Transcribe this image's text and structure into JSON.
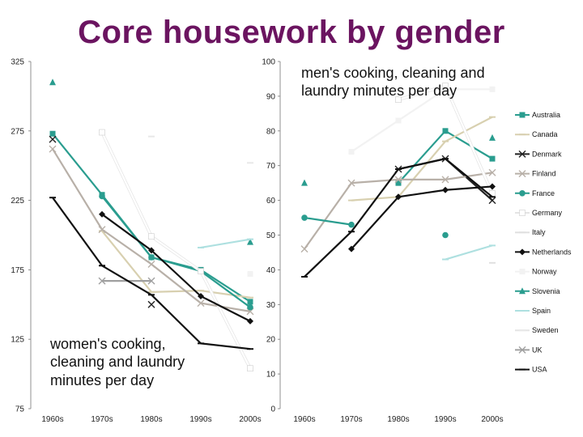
{
  "title": "Core housework by gender",
  "chart_data": [
    {
      "type": "line",
      "panel": "women",
      "label": "women's cooking, cleaning and laundry minutes per day",
      "categories": [
        "1960s",
        "1970s",
        "1980s",
        "1990s",
        "2000s"
      ],
      "ylim": [
        75,
        325
      ],
      "yticks": [
        75,
        125,
        175,
        225,
        275,
        325
      ],
      "series": [
        {
          "name": "Australia",
          "values": [
            273,
            229,
            184,
            175,
            152
          ]
        },
        {
          "name": "Canada",
          "values": [
            null,
            203,
            159,
            160,
            155
          ]
        },
        {
          "name": "Denmark",
          "values": [
            269,
            null,
            150,
            null,
            null
          ]
        },
        {
          "name": "Finland",
          "values": [
            262,
            204,
            179,
            151,
            145
          ]
        },
        {
          "name": "France",
          "values": [
            null,
            228,
            184,
            174,
            148
          ]
        },
        {
          "name": "Germany",
          "values": [
            null,
            274,
            199,
            174,
            104
          ]
        },
        {
          "name": "Italy",
          "values": [
            null,
            null,
            null,
            null,
            null
          ]
        },
        {
          "name": "Netherlands",
          "values": [
            null,
            215,
            189,
            156,
            138
          ]
        },
        {
          "name": "Norway",
          "values": [
            null,
            null,
            null,
            null,
            172
          ]
        },
        {
          "name": "Slovenia",
          "values": [
            310,
            null,
            null,
            null,
            195
          ]
        },
        {
          "name": "Spain",
          "values": [
            null,
            null,
            null,
            191,
            197
          ]
        },
        {
          "name": "Sweden",
          "values": [
            null,
            null,
            271,
            null,
            252
          ]
        },
        {
          "name": "UK",
          "values": [
            null,
            167,
            167,
            null,
            null
          ]
        },
        {
          "name": "USA",
          "values": [
            227,
            178,
            157,
            122,
            118
          ]
        }
      ]
    },
    {
      "type": "line",
      "panel": "men",
      "label": "men's cooking, cleaning and laundry minutes per day",
      "categories": [
        "1960s",
        "1970s",
        "1980s",
        "1990s",
        "2000s"
      ],
      "ylim": [
        0,
        100
      ],
      "yticks": [
        0,
        10,
        20,
        30,
        40,
        50,
        60,
        70,
        80,
        90,
        100
      ],
      "series": [
        {
          "name": "Australia",
          "values": [
            null,
            null,
            65,
            80,
            72
          ]
        },
        {
          "name": "Canada",
          "values": [
            null,
            60,
            61,
            77,
            84
          ]
        },
        {
          "name": "Denmark",
          "values": [
            null,
            null,
            69,
            72,
            60
          ]
        },
        {
          "name": "Finland",
          "values": [
            46,
            65,
            66,
            66,
            68
          ]
        },
        {
          "name": "France",
          "values": [
            55,
            53,
            null,
            50,
            null
          ]
        },
        {
          "name": "Germany",
          "values": [
            null,
            null,
            89,
            93,
            62
          ]
        },
        {
          "name": "Italy",
          "values": [
            null,
            null,
            null,
            null,
            42
          ]
        },
        {
          "name": "Netherlands",
          "values": [
            null,
            46,
            61,
            63,
            64
          ]
        },
        {
          "name": "Norway",
          "values": [
            null,
            74,
            83,
            92,
            92
          ]
        },
        {
          "name": "Slovenia",
          "values": [
            65,
            null,
            null,
            null,
            78
          ]
        },
        {
          "name": "Spain",
          "values": [
            null,
            null,
            null,
            43,
            47
          ]
        },
        {
          "name": "Sweden",
          "values": [
            null,
            null,
            null,
            null,
            null
          ]
        },
        {
          "name": "UK",
          "values": [
            null,
            null,
            null,
            null,
            null
          ]
        },
        {
          "name": "USA",
          "values": [
            38,
            51,
            69,
            72,
            61
          ]
        }
      ]
    }
  ],
  "legend": [
    {
      "name": "Australia",
      "color": "#2a9d8f",
      "marker": "square"
    },
    {
      "name": "Canada",
      "color": "#d8d0b0",
      "marker": "dash"
    },
    {
      "name": "Denmark",
      "color": "#222222",
      "marker": "x"
    },
    {
      "name": "Finland",
      "color": "#b8b0a8",
      "marker": "x"
    },
    {
      "name": "France",
      "color": "#2a9d8f",
      "marker": "circle"
    },
    {
      "name": "Germany",
      "color": "#ffffff",
      "marker": "square"
    },
    {
      "name": "Italy",
      "color": "#e0e0e0",
      "marker": "dash"
    },
    {
      "name": "Netherlands",
      "color": "#111111",
      "marker": "diamond"
    },
    {
      "name": "Norway",
      "color": "#f2f2f2",
      "marker": "square"
    },
    {
      "name": "Slovenia",
      "color": "#2a9d8f",
      "marker": "triangle"
    },
    {
      "name": "Spain",
      "color": "#aee0e0",
      "marker": "dash"
    },
    {
      "name": "Sweden",
      "color": "#ffffff",
      "marker": "dash"
    },
    {
      "name": "UK",
      "color": "#a0a0a0",
      "marker": "x"
    },
    {
      "name": "USA",
      "color": "#111111",
      "marker": "dash"
    }
  ]
}
